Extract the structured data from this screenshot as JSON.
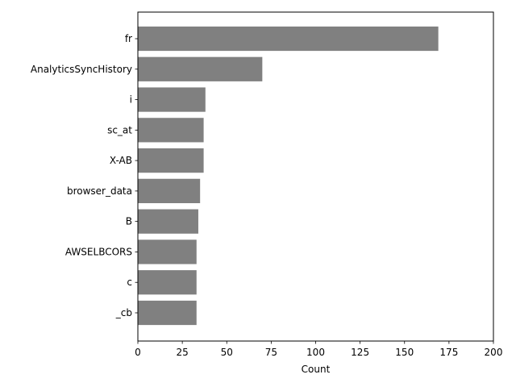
{
  "chart_data": {
    "type": "bar",
    "orientation": "horizontal",
    "categories": [
      "fr",
      "AnalyticsSyncHistory",
      "i",
      "sc_at",
      "X-AB",
      "browser_data",
      "B",
      "AWSELBCORS",
      "c",
      "_cb"
    ],
    "values": [
      169,
      70,
      38,
      37,
      37,
      35,
      34,
      33,
      33,
      33
    ],
    "title": "",
    "xlabel": "Count",
    "ylabel": "",
    "xlim": [
      0,
      200
    ],
    "xticks": [
      0,
      25,
      50,
      75,
      100,
      125,
      150,
      175,
      200
    ],
    "xtick_labels": [
      "0",
      "25",
      "50",
      "75",
      "100",
      "125",
      "150",
      "175",
      "200"
    ],
    "grid": false,
    "bar_color": "#808080"
  }
}
